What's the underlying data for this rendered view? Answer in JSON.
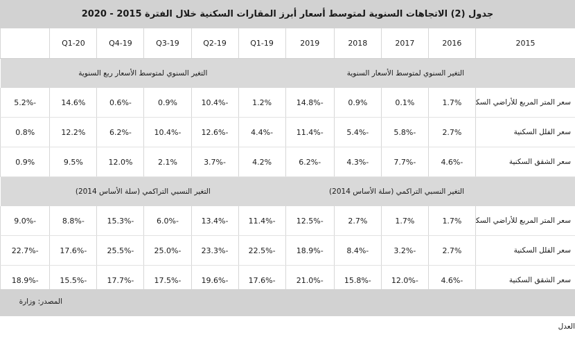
{
  "title": "جدول (2) الاتجاهات السنوية لمتوسط أسعار أبرز المقارات السكنية خلال الفترة 2015 - 2020",
  "columns": [
    "2015",
    "2016",
    "2017",
    "2018",
    "2019",
    "19-Q1",
    "19-Q2",
    "19-Q3",
    "19-Q4",
    "20-Q1"
  ],
  "sections": [
    {
      "right_heading": "التغير السنوي لمتوسط الأسعار السنوية",
      "left_heading": "التغير السنوي لمتوسط الأسعار ربع السنوية",
      "rows": [
        {
          "label": "سعر المتر المربع للأراضي السكنية",
          "values": [
            "1.7%",
            "0.1%",
            "0.9%",
            "-14.8%",
            "1.2%",
            "-10.4%",
            "0.9%",
            "-0.6%",
            "14.6%",
            "-5.2%"
          ]
        },
        {
          "label": "سعر الفلل السكنية",
          "values": [
            "2.7%",
            "-5.8%",
            "-5.4%",
            "-11.4%",
            "-4.4%",
            "-12.6%",
            "-10.4%",
            "-6.2%",
            "12.2%",
            "0.8%"
          ]
        },
        {
          "label": "سعر الشقق السكنية",
          "values": [
            "-4.6%",
            "-7.7%",
            "-4.3%",
            "-6.2%",
            "4.2%",
            "-3.7%",
            "2.1%",
            "12.0%",
            "9.5%",
            "0.9%"
          ]
        }
      ]
    },
    {
      "right_heading": "التغير النسبي التراكمي (سلة الأساس 2014)",
      "left_heading": "التغير النسبي التراكمي  (سلة الأساس 2014)",
      "rows": [
        {
          "label": "سعر المتر المربع للأراضي السكنية",
          "values": [
            "1.7%",
            "1.7%",
            "2.7%",
            "-12.5%",
            "-11.4%",
            "-13.4%",
            "-6.0%",
            "-15.3%",
            "-8.8%",
            "-9.0%"
          ]
        },
        {
          "label": "سعر الفلل السكنية",
          "values": [
            "2.7%",
            "-3.2%",
            "-8.4%",
            "-18.9%",
            "-22.5%",
            "-23.3%",
            "-25.0%",
            "-25.5%",
            "-17.6%",
            "-22.7%"
          ]
        },
        {
          "label": "سعر الشقق السكنية",
          "values": [
            "-4.6%",
            "-12.0%",
            "-15.8%",
            "-21.0%",
            "-17.6%",
            "-19.6%",
            "-17.5%",
            "-17.7%",
            "-15.5%",
            "-18.9%"
          ]
        }
      ]
    }
  ],
  "source": "المصدر: وزارة العدل"
}
